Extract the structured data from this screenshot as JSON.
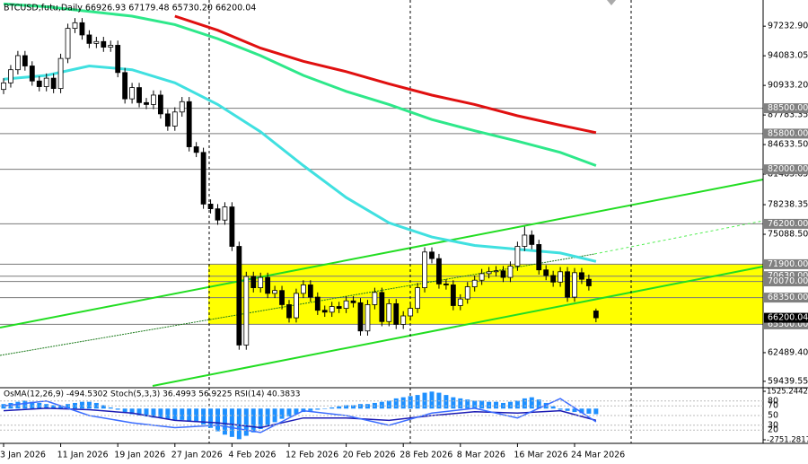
{
  "chart_data": {
    "type": "candlestick",
    "title": "BTCUSD,futu,Daily 66926.93 67179.48 65730.20 66200.04",
    "categories": [
      "3 Jan 2026",
      null,
      null,
      null,
      null,
      null,
      null,
      null,
      "11 Jan 2026",
      null,
      null,
      null,
      null,
      null,
      null,
      null,
      "19 Jan 2026",
      null,
      null,
      null,
      null,
      null,
      null,
      null,
      "27 Jan 2026",
      null,
      null,
      null,
      null,
      null,
      null,
      null,
      "4 Feb 2026",
      null,
      null,
      null,
      null,
      null,
      null,
      null,
      "12 Feb 2026",
      null,
      null,
      null,
      null,
      null,
      null,
      null,
      "20 Feb 2026",
      null,
      null,
      null,
      null,
      null,
      null,
      null,
      "28 Feb 2026",
      null,
      null,
      null,
      null,
      null,
      null,
      null,
      "8 Mar 2026",
      null,
      null,
      null,
      null,
      null,
      null,
      null,
      "16 Mar 2026",
      null,
      null,
      null,
      null,
      null,
      null,
      null,
      "24 Mar 2026",
      null,
      null,
      null
    ],
    "open": [
      90500,
      91200,
      92600,
      94100,
      93000,
      91400,
      90800,
      91700,
      90600,
      93800,
      97000,
      97600,
      96300,
      95400,
      95600,
      95000,
      95200,
      92300,
      89500,
      90700,
      89100,
      88900,
      89900,
      87900,
      86600,
      88100,
      89200,
      84400,
      83800,
      78300,
      77800,
      76600,
      78000,
      73800,
      63300,
      70600,
      69400,
      70500,
      68800,
      69100,
      67600,
      66200,
      68800,
      69700,
      68400,
      67000,
      66800,
      67400,
      67200,
      68000,
      67800,
      64800,
      67600,
      68900,
      65800,
      67700,
      65500,
      66400,
      67200,
      69400,
      73200,
      72500,
      69800,
      69700,
      67500,
      68200,
      69500,
      70200,
      70900,
      71100,
      71200,
      70500,
      71700,
      73800,
      75000,
      74000,
      71300,
      70700,
      70000,
      71100,
      68400,
      71000,
      70300,
      66926.93
    ],
    "high": [
      91700,
      93100,
      94600,
      94600,
      93500,
      91900,
      92200,
      92200,
      94300,
      97500,
      98100,
      98100,
      96800,
      96100,
      96100,
      95700,
      95700,
      92800,
      91200,
      91200,
      89600,
      90400,
      90400,
      88400,
      88600,
      89700,
      89700,
      84900,
      84300,
      78800,
      78300,
      78500,
      78500,
      74300,
      71100,
      71100,
      71000,
      71000,
      69600,
      69600,
      68100,
      69300,
      70200,
      70200,
      68900,
      67500,
      67900,
      67900,
      68500,
      68500,
      68300,
      68100,
      69400,
      69400,
      68200,
      68200,
      66900,
      67700,
      69900,
      73700,
      73700,
      73000,
      70300,
      70200,
      68700,
      70000,
      70700,
      71400,
      71600,
      71700,
      71700,
      72200,
      74300,
      75900,
      75500,
      74500,
      71800,
      71200,
      71600,
      71600,
      71500,
      71500,
      70800,
      67179.48
    ],
    "low": [
      90000,
      90700,
      92100,
      92500,
      90900,
      90300,
      90300,
      90100,
      90100,
      93300,
      96500,
      95800,
      94900,
      94900,
      94500,
      94500,
      91800,
      89000,
      89000,
      88600,
      88400,
      88400,
      87400,
      86100,
      86100,
      87600,
      83900,
      83300,
      77800,
      77300,
      76100,
      76100,
      73300,
      62800,
      62800,
      68900,
      68900,
      68300,
      68300,
      67100,
      65700,
      65700,
      68300,
      67900,
      66500,
      66300,
      66300,
      66700,
      66700,
      67300,
      64300,
      64300,
      67100,
      65300,
      65300,
      65000,
      65000,
      65900,
      66700,
      68900,
      72000,
      69300,
      69200,
      67000,
      67000,
      67700,
      69000,
      69700,
      70400,
      70600,
      70000,
      70000,
      71200,
      73300,
      73500,
      70800,
      70200,
      69500,
      69500,
      67900,
      67900,
      69800,
      69100,
      65730.2
    ],
    "close": [
      91200,
      92600,
      94100,
      93000,
      91400,
      90800,
      91700,
      90600,
      93800,
      97000,
      97600,
      96300,
      95400,
      95600,
      95000,
      95200,
      92300,
      89500,
      90700,
      89100,
      88900,
      89900,
      87900,
      86600,
      88100,
      89200,
      84400,
      83800,
      78300,
      77800,
      76600,
      78000,
      73800,
      63300,
      70600,
      69400,
      70500,
      68800,
      69100,
      67600,
      66200,
      68800,
      69700,
      68400,
      67000,
      66800,
      67400,
      67200,
      68000,
      67800,
      64800,
      67600,
      68900,
      65800,
      67700,
      65500,
      66400,
      67200,
      69400,
      73200,
      72500,
      69800,
      69700,
      67500,
      68200,
      69500,
      70200,
      70900,
      71100,
      71200,
      70500,
      71700,
      73800,
      75000,
      74000,
      71300,
      70700,
      70000,
      71100,
      68400,
      71000,
      70300,
      69600,
      66200.04
    ],
    "overlays": [
      {
        "color": "#40e0e0",
        "x": [
          0,
          6,
          12,
          18,
          24,
          30,
          36,
          42,
          48,
          54,
          60,
          66,
          72,
          78,
          83
        ],
        "values": [
          91600,
          92000,
          93000,
          92600,
          91200,
          88900,
          86000,
          82400,
          79000,
          76300,
          74800,
          73900,
          73500,
          73100,
          72200
        ]
      },
      {
        "color": "#2ee88a",
        "x": [
          0,
          6,
          12,
          18,
          24,
          30,
          36,
          42,
          48,
          54,
          60,
          66,
          72,
          78,
          83
        ],
        "values": [
          99600,
          99300,
          98800,
          98300,
          97400,
          95900,
          94100,
          92000,
          90300,
          88900,
          87300,
          86100,
          85000,
          83800,
          82400
        ]
      },
      {
        "color": "#e01010",
        "x": [
          0,
          6,
          12,
          18,
          24,
          30,
          36,
          42,
          48,
          54,
          60,
          66,
          72,
          78,
          83
        ],
        "values": [
          null,
          null,
          null,
          null,
          98300,
          96800,
          94900,
          93500,
          92400,
          91100,
          89900,
          88900,
          87700,
          86700,
          85900
        ]
      }
    ],
    "ylim": [
      58950,
      100020
    ],
    "yticks": [
      {
        "value": 97232.9,
        "label": "97232.90"
      },
      94083.05,
      {
        "value": 90933.2,
        "label": "90933.20"
      },
      87783.35,
      {
        "value": 84633.5,
        "label": "84633.50"
      },
      81483.65,
      78238.35,
      {
        "value": 75088.5,
        "label": "75088.50"
      },
      {
        "value": 62489.4,
        "label": "62489.40"
      },
      59439.55
    ],
    "levels": [
      {
        "value": 88500,
        "label": "88500.00"
      },
      {
        "value": 85800,
        "label": "85800.00"
      },
      {
        "value": 82000,
        "label": "82000.00"
      },
      {
        "value": 76200,
        "label": "76200.00"
      },
      {
        "value": 71900,
        "label": "71900.00"
      },
      {
        "value": 70630,
        "label": "70630.00"
      },
      {
        "value": 70070,
        "label": "70070.00"
      },
      {
        "value": 68350,
        "label": "68350.00"
      },
      {
        "value": 65500,
        "label": "65500.00"
      }
    ],
    "highlight_color": "#ffff00",
    "current_price": 66200.04,
    "oscillator": {
      "title": "OsMA(12,26,9) -494.5302 Stoch(5,3,3) 36.4993 56.9225 RSI(14) 40.3833",
      "color": "#1e90ff",
      "values": [
        400,
        500,
        600,
        700,
        600,
        500,
        400,
        300,
        300,
        400,
        500,
        600,
        600,
        500,
        300,
        100,
        -100,
        -300,
        -500,
        -600,
        -700,
        -800,
        -800,
        -900,
        -1000,
        -1000,
        -1100,
        -1200,
        -1400,
        -1700,
        -2000,
        -2300,
        -2500,
        -2700,
        -2400,
        -2100,
        -1800,
        -1500,
        -1200,
        -900,
        -700,
        -500,
        -300,
        -200,
        -100,
        0,
        100,
        200,
        300,
        300,
        400,
        400,
        500,
        600,
        700,
        900,
        1000,
        1100,
        1200,
        1400,
        1500,
        1400,
        1200,
        1000,
        900,
        800,
        700,
        700,
        600,
        600,
        500,
        600,
        700,
        900,
        1000,
        800,
        500,
        200,
        -100,
        -200,
        -300,
        -400,
        -450,
        -494.53
      ],
      "ylim": [
        -2751.2817,
        1525.2442
      ],
      "yticks": [
        1525.2442,
        -2751.2817
      ],
      "level_lim": [
        0,
        100
      ],
      "level_ticks": [
        80,
        70,
        50,
        30,
        20
      ],
      "lines": [
        {
          "color": "#1c1cb4",
          "x": [
            0,
            6,
            12,
            18,
            24,
            30,
            36,
            42,
            48,
            54,
            60,
            66,
            72,
            78,
            83
          ],
          "values": [
            60,
            65,
            62,
            55,
            40,
            35,
            25,
            45,
            45,
            40,
            50,
            58,
            55,
            60,
            40
          ]
        },
        {
          "color": "#3a6cff",
          "x": [
            0,
            6,
            12,
            18,
            24,
            30,
            36,
            42,
            48,
            54,
            60,
            66,
            72,
            78,
            83
          ],
          "values": [
            70,
            80,
            50,
            35,
            25,
            30,
            15,
            60,
            50,
            30,
            55,
            65,
            45,
            85,
            37
          ]
        }
      ]
    }
  }
}
